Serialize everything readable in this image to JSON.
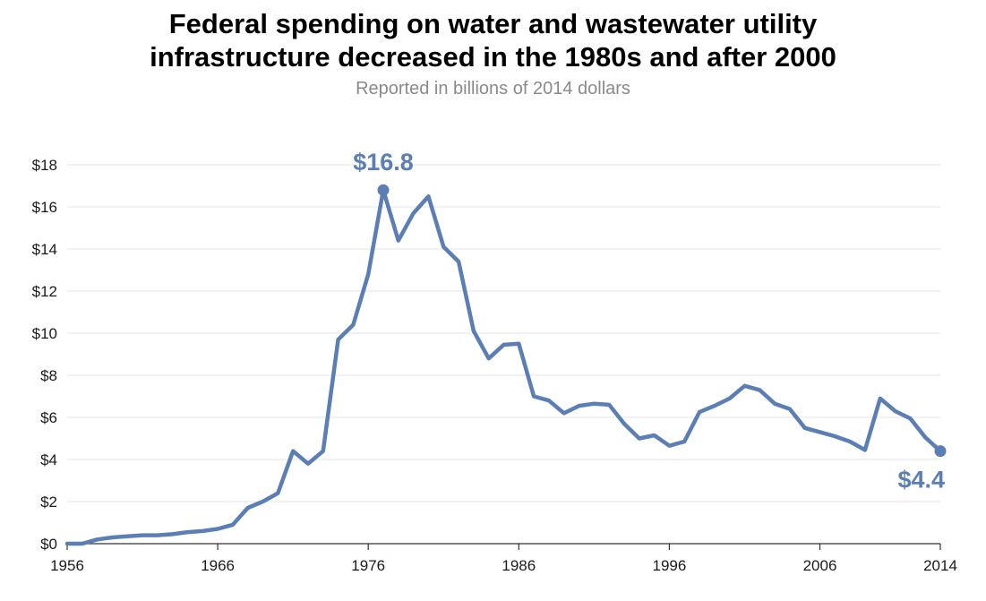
{
  "chart_data": {
    "type": "line",
    "title_line1": "Federal spending on water and wastewater utility",
    "title_line2": "infrastructure decreased in the 1980s and after 2000",
    "subtitle": "Reported in billions of 2014 dollars",
    "xlim": [
      1956,
      2014
    ],
    "ylim": [
      0,
      18
    ],
    "grid": true,
    "line_color": "#5b7fb5",
    "y_ticks": [
      0,
      2,
      4,
      6,
      8,
      10,
      12,
      14,
      16,
      18
    ],
    "y_tick_labels": [
      "$0",
      "$2",
      "$4",
      "$6",
      "$8",
      "$10",
      "$12",
      "$14",
      "$16",
      "$18"
    ],
    "x_ticks": [
      1956,
      1966,
      1976,
      1986,
      1996,
      2006,
      2014
    ],
    "x_tick_labels": [
      "1956",
      "1966",
      "1976",
      "1986",
      "1996",
      "2006",
      "2014"
    ],
    "series": [
      {
        "name": "Federal spending",
        "x": [
          1956,
          1957,
          1958,
          1959,
          1960,
          1961,
          1962,
          1963,
          1964,
          1965,
          1966,
          1967,
          1968,
          1969,
          1970,
          1971,
          1972,
          1973,
          1974,
          1975,
          1976,
          1977,
          1978,
          1979,
          1980,
          1981,
          1982,
          1983,
          1984,
          1985,
          1986,
          1987,
          1988,
          1989,
          1990,
          1991,
          1992,
          1993,
          1994,
          1995,
          1996,
          1997,
          1998,
          1999,
          2000,
          2001,
          2002,
          2003,
          2004,
          2005,
          2006,
          2007,
          2008,
          2009,
          2010,
          2011,
          2012,
          2013,
          2014
        ],
        "values": [
          0.0,
          0.0,
          0.2,
          0.3,
          0.35,
          0.4,
          0.4,
          0.45,
          0.55,
          0.6,
          0.7,
          0.9,
          1.7,
          2.0,
          2.4,
          4.4,
          3.8,
          4.4,
          9.7,
          10.4,
          12.8,
          16.8,
          14.4,
          15.7,
          16.5,
          14.1,
          13.4,
          10.1,
          8.8,
          9.45,
          9.5,
          7.0,
          6.8,
          6.2,
          6.55,
          6.65,
          6.6,
          5.7,
          5.0,
          5.15,
          4.65,
          4.85,
          6.25,
          6.55,
          6.9,
          7.5,
          7.3,
          6.65,
          6.4,
          5.5,
          5.3,
          5.1,
          4.85,
          4.45,
          6.9,
          6.3,
          5.95,
          5.05,
          4.4
        ]
      }
    ],
    "annotations": [
      {
        "label": "$16.8",
        "x": 1977,
        "y": 16.8
      },
      {
        "label": "$4.4",
        "x": 2014,
        "y": 4.4
      }
    ]
  }
}
